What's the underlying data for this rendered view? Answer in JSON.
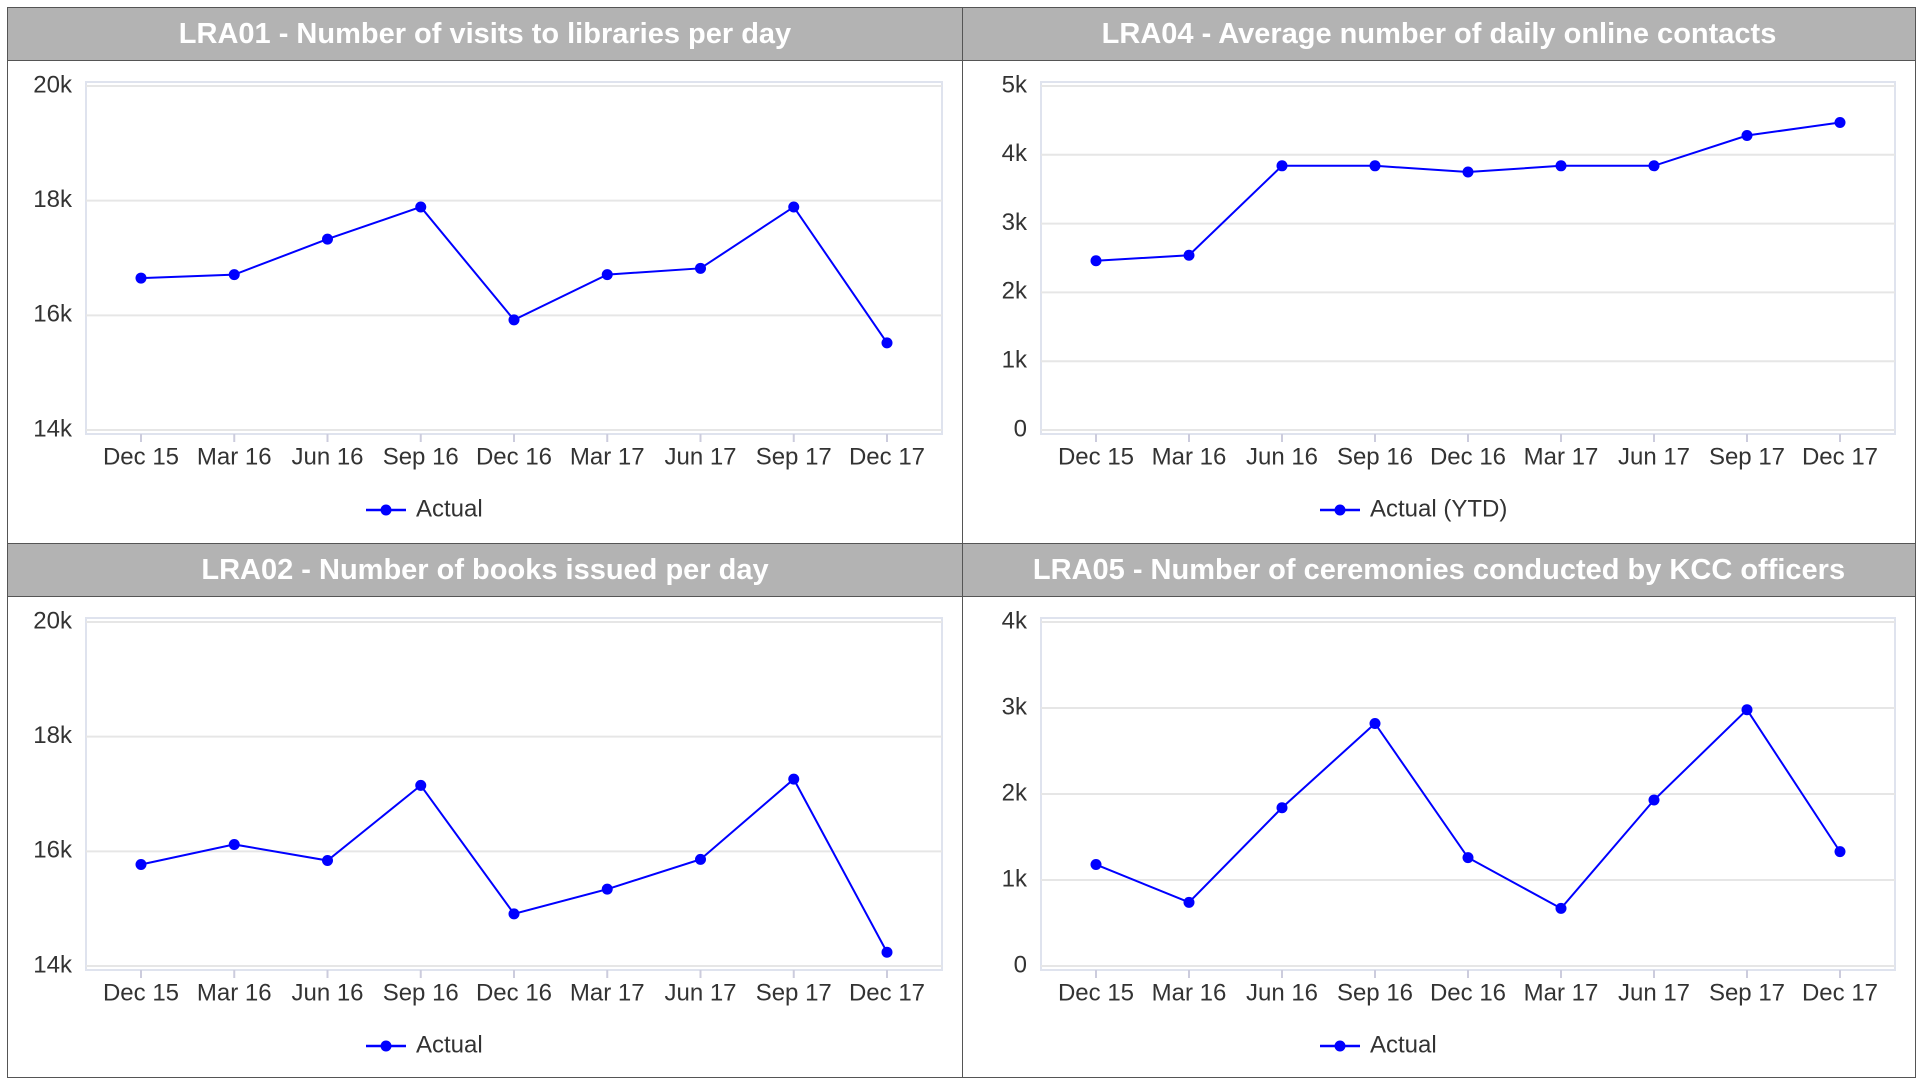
{
  "chart_data": [
    {
      "type": "line",
      "title": "LRA01 - Number of visits to libraries per day",
      "categories": [
        "Dec 15",
        "Mar 16",
        "Jun 16",
        "Sep 16",
        "Dec 16",
        "Mar 17",
        "Jun 17",
        "Sep 17",
        "Dec 17"
      ],
      "series": [
        {
          "name": "Actual",
          "color": "#0000ff",
          "values": [
            16650,
            16710,
            17330,
            17890,
            15920,
            16710,
            16820,
            17890,
            15520
          ]
        }
      ],
      "ylim": [
        14000,
        20000
      ],
      "yticks": [
        {
          "value": 14000,
          "label": "14k"
        },
        {
          "value": 16000,
          "label": "16k"
        },
        {
          "value": 18000,
          "label": "18k"
        },
        {
          "value": 20000,
          "label": "20k"
        }
      ],
      "grid": true
    },
    {
      "type": "line",
      "title": "LRA04 - Average number of daily online contacts",
      "categories": [
        "Dec 15",
        "Mar 16",
        "Jun 16",
        "Sep 16",
        "Dec 16",
        "Mar 17",
        "Jun 17",
        "Sep 17",
        "Dec 17"
      ],
      "series": [
        {
          "name": "Actual (YTD)",
          "color": "#0000ff",
          "values": [
            2460,
            2540,
            3840,
            3840,
            3750,
            3840,
            3840,
            4280,
            4470
          ]
        }
      ],
      "ylim": [
        0,
        5000
      ],
      "yticks": [
        0,
        {
          "value": 1000,
          "label": "1k"
        },
        {
          "value": 2000,
          "label": "2k"
        },
        {
          "value": 3000,
          "label": "3k"
        },
        {
          "value": 4000,
          "label": "4k"
        },
        {
          "value": 5000,
          "label": "5k"
        }
      ],
      "grid": true
    },
    {
      "type": "line",
      "title": "LRA02 - Number of books issued per day",
      "categories": [
        "Dec 15",
        "Mar 16",
        "Jun 16",
        "Sep 16",
        "Dec 16",
        "Mar 17",
        "Jun 17",
        "Sep 17",
        "Dec 17"
      ],
      "series": [
        {
          "name": "Actual",
          "color": "#0000ff",
          "values": [
            15770,
            16120,
            15840,
            17150,
            14910,
            15340,
            15860,
            17260,
            14240
          ]
        }
      ],
      "ylim": [
        14000,
        20000
      ],
      "yticks": [
        {
          "value": 14000,
          "label": "14k"
        },
        {
          "value": 16000,
          "label": "16k"
        },
        {
          "value": 18000,
          "label": "18k"
        },
        {
          "value": 20000,
          "label": "20k"
        }
      ],
      "grid": true
    },
    {
      "type": "line",
      "title": "LRA05 - Number of ceremonies conducted by KCC officers",
      "categories": [
        "Dec 15",
        "Mar 16",
        "Jun 16",
        "Sep 16",
        "Dec 16",
        "Mar 17",
        "Jun 17",
        "Sep 17",
        "Dec 17"
      ],
      "series": [
        {
          "name": "Actual",
          "color": "#0000ff",
          "values": [
            1180,
            740,
            1840,
            2820,
            1260,
            670,
            1930,
            2980,
            1330
          ]
        }
      ],
      "ylim": [
        0,
        4000
      ],
      "yticks": [
        0,
        {
          "value": 1000,
          "label": "1k"
        },
        {
          "value": 2000,
          "label": "2k"
        },
        {
          "value": 3000,
          "label": "3k"
        },
        {
          "value": 4000,
          "label": "4k"
        }
      ],
      "grid": true
    }
  ]
}
